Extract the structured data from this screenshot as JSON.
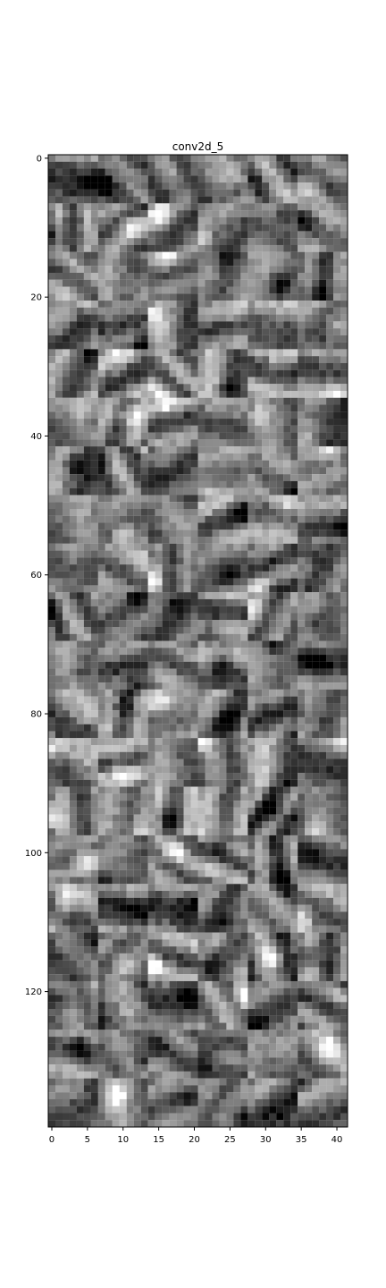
{
  "chart_data": {
    "type": "heatmap",
    "title": "conv2d_5",
    "colormap": "gray",
    "xlim": [
      -0.5,
      41.5
    ],
    "ylim": [
      139.5,
      -0.5
    ],
    "x_ticks": [
      0,
      5,
      10,
      15,
      20,
      25,
      30,
      35,
      40
    ],
    "y_ticks": [
      0,
      20,
      40,
      60,
      80,
      100,
      120
    ],
    "grid": false,
    "n_cols": 42,
    "n_rows": 140,
    "tile_grid": {
      "cols": 6,
      "rows": 20,
      "tile_size": 7
    }
  }
}
